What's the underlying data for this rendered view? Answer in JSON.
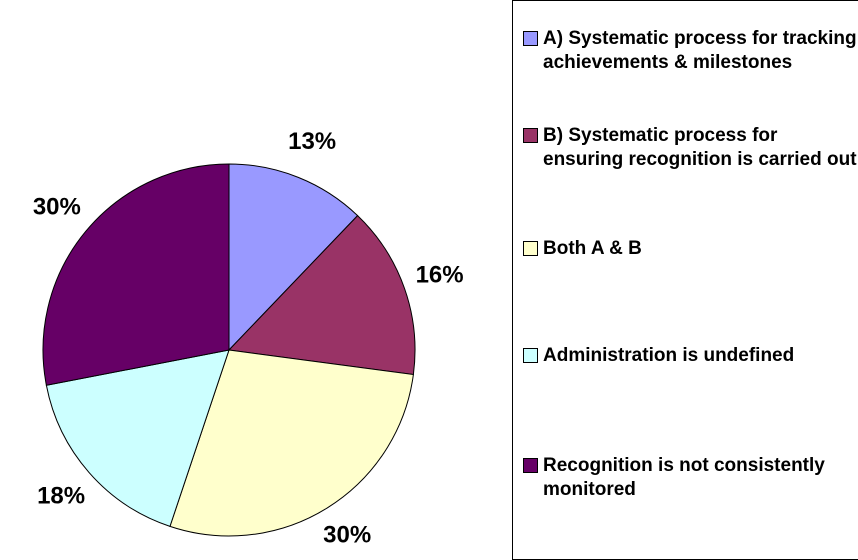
{
  "chart_data": {
    "type": "pie",
    "categories": [
      "A) Systematic process for tracking achievements & milestones",
      "B) Systematic process for ensuring recognition is carried out",
      "Both A & B",
      "Administration is undefined",
      "Recognition is not consistently monitored"
    ],
    "values": [
      13,
      16,
      30,
      18,
      30
    ],
    "value_labels": [
      "13%",
      "16%",
      "30%",
      "18%",
      "30%"
    ],
    "colors": [
      "#9999ff",
      "#993366",
      "#ffffcc",
      "#ccffff",
      "#660066"
    ],
    "legend": "right"
  }
}
